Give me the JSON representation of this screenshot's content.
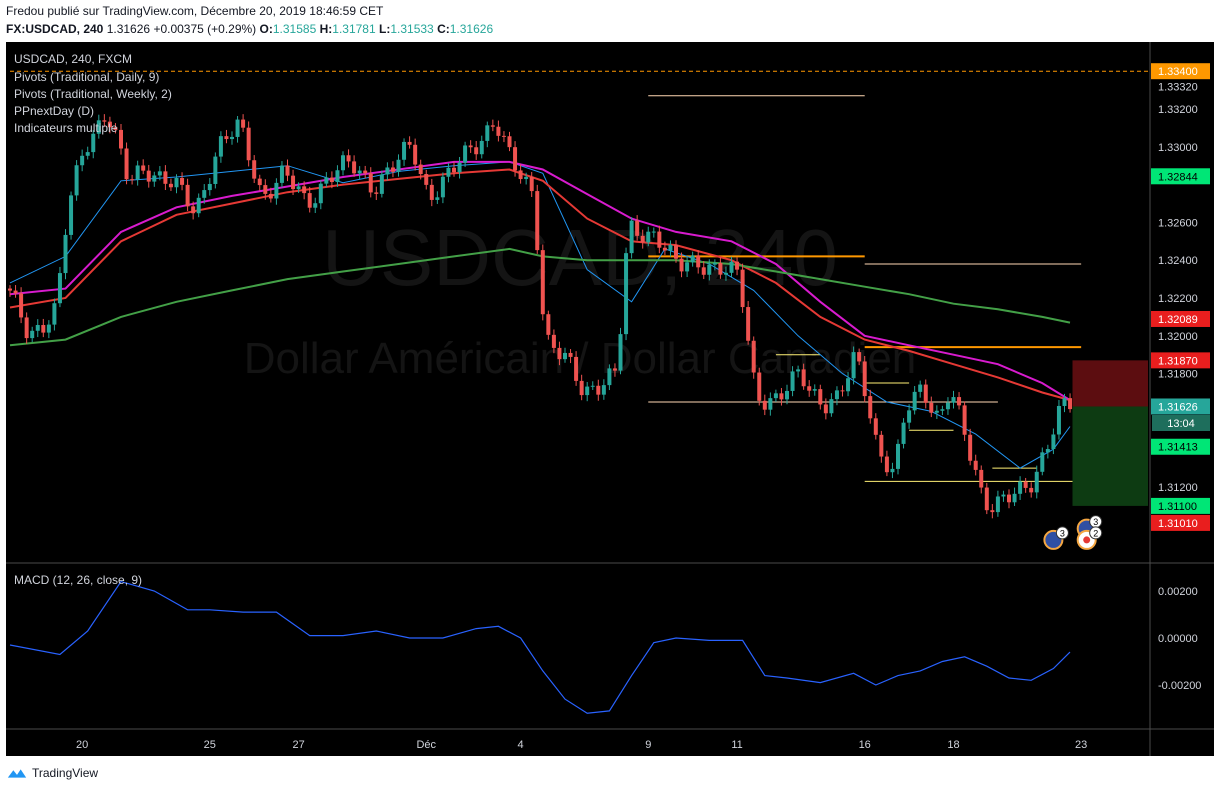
{
  "header": {
    "publish_line": "Fredou publié sur TradingView.com, Décembre 20, 2019 18:46:59 CET",
    "symbol": "FX:USDCAD, 240",
    "price": "1.31626",
    "change": "+0.00375 (+0.29%)",
    "o_label": "O:",
    "o_value": "1.31585",
    "h_label": "H:",
    "h_value": "1.31781",
    "l_label": "L:",
    "l_value": "1.31533",
    "c_label": "C:",
    "c_value": "1.31626"
  },
  "legend": [
    "USDCAD, 240, FXCM",
    "Pivots (Traditional, Daily, 9)",
    "Pivots (Traditional, Weekly, 2)",
    "PPnextDay (D)",
    "Indicateurs multiple"
  ],
  "watermark": {
    "symbol": "USDCAD, 240",
    "name": "Dollar Américain / Dollar Canadien"
  },
  "macd_label": "MACD (12, 26, close, 9)",
  "countdown": "13:04",
  "brand": "TradingView",
  "colors": {
    "background": "#000000",
    "up": "#26a69a",
    "down": "#ef5350",
    "ma_fast": "#2196f3",
    "ma_red": "#e53935",
    "ma_magenta": "#d81bce",
    "ma_green": "#43a047",
    "pivot_orange": "#ff9800",
    "pivot_white": "#ffd7b3",
    "pivot_yellow": "#fff176",
    "macd": "#2962ff"
  },
  "chart_data": [
    {
      "type": "candlestick",
      "timeframe": "240",
      "ylim": [
        1.309,
        1.3345
      ],
      "x_ticks": [
        {
          "label": "20",
          "bar": 13
        },
        {
          "label": "25",
          "bar": 36
        },
        {
          "label": "27",
          "bar": 52
        },
        {
          "label": "Déc",
          "bar": 75
        },
        {
          "label": "4",
          "bar": 92
        },
        {
          "label": "9",
          "bar": 115
        },
        {
          "label": "11",
          "bar": 131
        },
        {
          "label": "16",
          "bar": 154
        },
        {
          "label": "18",
          "bar": 170
        },
        {
          "label": "23",
          "bar": 193
        }
      ],
      "y_ticks": [
        "1.33320",
        "1.33200",
        "1.33000",
        "1.32600",
        "1.32400",
        "1.32200",
        "1.32000",
        "1.31800",
        "1.31200"
      ],
      "price_labels": [
        {
          "text": "1.33400",
          "value": 1.334,
          "color": "#ff9800"
        },
        {
          "text": "1.32844",
          "value": 1.32844,
          "color": "#00e676"
        },
        {
          "text": "1.32089",
          "value": 1.32089,
          "color": "#e91e1e"
        },
        {
          "text": "1.31870",
          "value": 1.3187,
          "color": "#e91e1e"
        },
        {
          "text": "1.31626",
          "value": 1.31626,
          "color": "#26a69a"
        },
        {
          "text": "1.31413",
          "value": 1.31413,
          "color": "#00e676"
        },
        {
          "text": "1.31100",
          "value": 1.311,
          "color": "#00e676"
        },
        {
          "text": "1.31010",
          "value": 1.3101,
          "color": "#e91e1e"
        }
      ],
      "anchors": [
        [
          0,
          1.3225
        ],
        [
          4,
          1.32
        ],
        [
          9,
          1.3215
        ],
        [
          11,
          1.3265
        ],
        [
          14,
          1.33
        ],
        [
          18,
          1.332
        ],
        [
          22,
          1.328
        ],
        [
          25,
          1.329
        ],
        [
          30,
          1.328
        ],
        [
          34,
          1.3265
        ],
        [
          38,
          1.33
        ],
        [
          42,
          1.331
        ],
        [
          46,
          1.3275
        ],
        [
          50,
          1.3285
        ],
        [
          54,
          1.327
        ],
        [
          58,
          1.3285
        ],
        [
          62,
          1.329
        ],
        [
          66,
          1.328
        ],
        [
          70,
          1.329
        ],
        [
          73,
          1.33
        ],
        [
          76,
          1.3275
        ],
        [
          80,
          1.3285
        ],
        [
          84,
          1.33
        ],
        [
          88,
          1.3315
        ],
        [
          91,
          1.329
        ],
        [
          95,
          1.3275
        ],
        [
          97,
          1.32
        ],
        [
          101,
          1.3185
        ],
        [
          104,
          1.317
        ],
        [
          106,
          1.3175
        ],
        [
          110,
          1.318
        ],
        [
          112,
          1.3255
        ],
        [
          117,
          1.3255
        ],
        [
          121,
          1.3235
        ],
        [
          125,
          1.324
        ],
        [
          129,
          1.3235
        ],
        [
          132,
          1.323
        ],
        [
          135,
          1.317
        ],
        [
          139,
          1.3165
        ],
        [
          143,
          1.318
        ],
        [
          147,
          1.3165
        ],
        [
          150,
          1.3165
        ],
        [
          153,
          1.319
        ],
        [
          155,
          1.317
        ],
        [
          157,
          1.314
        ],
        [
          160,
          1.3125
        ],
        [
          162,
          1.316
        ],
        [
          165,
          1.3175
        ],
        [
          168,
          1.3155
        ],
        [
          170,
          1.317
        ],
        [
          174,
          1.3135
        ],
        [
          176,
          1.3115
        ],
        [
          178,
          1.311
        ],
        [
          182,
          1.3115
        ],
        [
          185,
          1.3125
        ],
        [
          187,
          1.314
        ],
        [
          190,
          1.316
        ],
        [
          191,
          1.31626
        ]
      ],
      "moving_averages": [
        {
          "name": "fast",
          "color": "#2196f3",
          "points": [
            [
              0,
              1.3228
            ],
            [
              10,
              1.3242
            ],
            [
              20,
              1.3282
            ],
            [
              30,
              1.3284
            ],
            [
              40,
              1.3287
            ],
            [
              50,
              1.329
            ],
            [
              60,
              1.3281
            ],
            [
              70,
              1.3287
            ],
            [
              80,
              1.329
            ],
            [
              90,
              1.3292
            ],
            [
              96,
              1.3286
            ],
            [
              104,
              1.3235
            ],
            [
              112,
              1.3218
            ],
            [
              118,
              1.3246
            ],
            [
              126,
              1.3238
            ],
            [
              134,
              1.3224
            ],
            [
              142,
              1.32
            ],
            [
              150,
              1.318
            ],
            [
              158,
              1.3165
            ],
            [
              166,
              1.316
            ],
            [
              174,
              1.3148
            ],
            [
              182,
              1.313
            ],
            [
              188,
              1.314
            ],
            [
              191,
              1.3152
            ]
          ]
        },
        {
          "name": "red",
          "color": "#e53935",
          "points": [
            [
              0,
              1.3215
            ],
            [
              10,
              1.322
            ],
            [
              20,
              1.325
            ],
            [
              30,
              1.3264
            ],
            [
              40,
              1.327
            ],
            [
              50,
              1.3276
            ],
            [
              60,
              1.328
            ],
            [
              70,
              1.3283
            ],
            [
              80,
              1.3286
            ],
            [
              90,
              1.3288
            ],
            [
              96,
              1.3282
            ],
            [
              104,
              1.3262
            ],
            [
              112,
              1.325
            ],
            [
              120,
              1.3248
            ],
            [
              130,
              1.324
            ],
            [
              138,
              1.3228
            ],
            [
              146,
              1.321
            ],
            [
              154,
              1.3198
            ],
            [
              162,
              1.3192
            ],
            [
              170,
              1.3185
            ],
            [
              178,
              1.3178
            ],
            [
              186,
              1.317
            ],
            [
              191,
              1.3166
            ]
          ]
        },
        {
          "name": "magenta",
          "color": "#d81bce",
          "points": [
            [
              0,
              1.3222
            ],
            [
              10,
              1.3225
            ],
            [
              20,
              1.3255
            ],
            [
              30,
              1.3268
            ],
            [
              40,
              1.3274
            ],
            [
              50,
              1.3279
            ],
            [
              60,
              1.3284
            ],
            [
              70,
              1.3288
            ],
            [
              80,
              1.3292
            ],
            [
              90,
              1.3292
            ],
            [
              96,
              1.3288
            ],
            [
              104,
              1.3275
            ],
            [
              112,
              1.3262
            ],
            [
              120,
              1.3255
            ],
            [
              130,
              1.325
            ],
            [
              138,
              1.3238
            ],
            [
              146,
              1.3218
            ],
            [
              154,
              1.32
            ],
            [
              162,
              1.3195
            ],
            [
              170,
              1.319
            ],
            [
              178,
              1.3185
            ],
            [
              186,
              1.3175
            ],
            [
              191,
              1.3166
            ]
          ]
        },
        {
          "name": "green",
          "color": "#43a047",
          "points": [
            [
              0,
              1.3195
            ],
            [
              10,
              1.3198
            ],
            [
              20,
              1.321
            ],
            [
              30,
              1.3218
            ],
            [
              40,
              1.3224
            ],
            [
              50,
              1.323
            ],
            [
              60,
              1.3234
            ],
            [
              70,
              1.3238
            ],
            [
              80,
              1.3242
            ],
            [
              90,
              1.3246
            ],
            [
              96,
              1.3242
            ],
            [
              104,
              1.324
            ],
            [
              112,
              1.324
            ],
            [
              120,
              1.324
            ],
            [
              130,
              1.3238
            ],
            [
              138,
              1.3234
            ],
            [
              146,
              1.323
            ],
            [
              154,
              1.3226
            ],
            [
              162,
              1.3222
            ],
            [
              170,
              1.3217
            ],
            [
              178,
              1.3214
            ],
            [
              186,
              1.321
            ],
            [
              191,
              1.3207
            ]
          ]
        }
      ],
      "pivot_lines": [
        {
          "value": 1.3327,
          "from_bar": 115,
          "to_bar": 154,
          "color": "#ffd7b3"
        },
        {
          "value": 1.3242,
          "from_bar": 115,
          "to_bar": 154,
          "color": "#ff9800"
        },
        {
          "value": 1.3238,
          "from_bar": 154,
          "to_bar": 193,
          "color": "#ffd7b3"
        },
        {
          "value": 1.3194,
          "from_bar": 154,
          "to_bar": 193,
          "color": "#ff9800"
        },
        {
          "value": 1.3165,
          "from_bar": 115,
          "to_bar": 154,
          "color": "#ffd7b3"
        },
        {
          "value": 1.3165,
          "from_bar": 154,
          "to_bar": 178,
          "color": "#ffd7b3"
        },
        {
          "value": 1.3123,
          "from_bar": 154,
          "to_bar": 193,
          "color": "#fff176"
        },
        {
          "value": 1.319,
          "from_bar": 138,
          "to_bar": 146,
          "color": "#fff176"
        },
        {
          "value": 1.3175,
          "from_bar": 154,
          "to_bar": 162,
          "color": "#fff176"
        },
        {
          "value": 1.315,
          "from_bar": 162,
          "to_bar": 170,
          "color": "#fff176"
        },
        {
          "value": 1.313,
          "from_bar": 177,
          "to_bar": 185,
          "color": "#fff176"
        },
        {
          "value": 1.334,
          "from_bar": 0,
          "to_bar": 200,
          "color": "#ff9800",
          "dashed": true
        }
      ],
      "position_box": {
        "from_bar": 190,
        "to_bar": 200,
        "entry": 1.31626,
        "stop": 1.3187,
        "target": 1.311
      },
      "events": [
        {
          "kind": "us-flag",
          "count": "3",
          "bar": 194,
          "value": 1.3098
        },
        {
          "kind": "us-flag",
          "count": "3",
          "bar": 188,
          "value": 1.3092
        },
        {
          "kind": "ca-flag",
          "count": "2",
          "bar": 194,
          "value": 1.3092
        }
      ]
    },
    {
      "type": "line",
      "title": "MACD (12, 26, close, 9)",
      "ylim": [
        -0.0032,
        0.0026
      ],
      "y_ticks": [
        "0.00200",
        "0.00000",
        "-0.00200"
      ],
      "x": [
        0,
        9,
        14,
        20,
        26,
        32,
        36,
        42,
        48,
        54,
        60,
        66,
        72,
        78,
        84,
        88,
        92,
        96,
        100,
        104,
        108,
        112,
        116,
        120,
        126,
        132,
        136,
        140,
        146,
        152,
        156,
        160,
        164,
        168,
        172,
        176,
        180,
        184,
        188,
        191
      ],
      "values": [
        -0.0003,
        -0.0007,
        0.0003,
        0.0024,
        0.002,
        0.0012,
        0.0012,
        0.0011,
        0.0011,
        0.0001,
        0.0001,
        0.0003,
        0.0,
        -0.0,
        0.0004,
        0.0005,
        0.0,
        -0.0014,
        -0.0026,
        -0.0032,
        -0.0031,
        -0.0016,
        -0.0002,
        0.0,
        -0.0001,
        -0.0001,
        -0.0016,
        -0.0017,
        -0.0019,
        -0.0015,
        -0.002,
        -0.0016,
        -0.0014,
        -0.001,
        -0.0008,
        -0.0012,
        -0.0017,
        -0.0018,
        -0.0013,
        -0.0006
      ]
    }
  ]
}
